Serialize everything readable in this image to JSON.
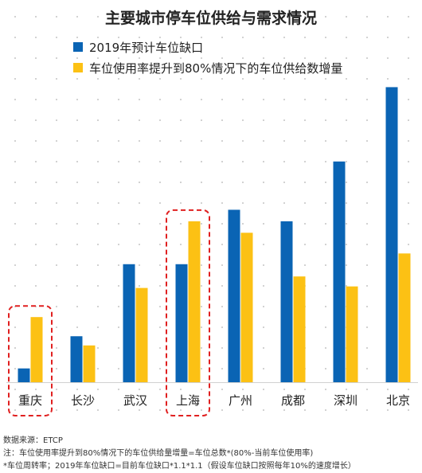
{
  "chart_data": {
    "type": "bar",
    "title": "主要城市停车位供给与需求情况",
    "categories": [
      "重庆",
      "长沙",
      "武汉",
      "上海",
      "广州",
      "成都",
      "深圳",
      "北京"
    ],
    "series": [
      {
        "name": "2019年预计车位缺口",
        "values": [
          18,
          60,
          154,
          154,
          225,
          210,
          288,
          385
        ]
      },
      {
        "name": "车位使用率提升到80%情况下的车位供给数增量",
        "values": [
          85,
          48,
          123,
          210,
          195,
          138,
          125,
          168
        ]
      }
    ],
    "ylim": [
      0,
      400
    ],
    "grid": true,
    "legend_placement": "top-left",
    "highlighted_categories": [
      "重庆",
      "上海"
    ],
    "colors": {
      "series1": "#0a64b4",
      "series2": "#fcc114",
      "highlight": "#e02020"
    }
  },
  "footnotes": {
    "source": "数据来源：ETCP",
    "note1": "注：车位使用率提升到80%情况下的车位供给量增量=车位总数*(80%-当前车位使用率)",
    "note2": "*车位周转率；2019年车位缺口=目前车位缺口*1.1*1.1（假设车位缺口按照每年10%的速度增长）"
  }
}
